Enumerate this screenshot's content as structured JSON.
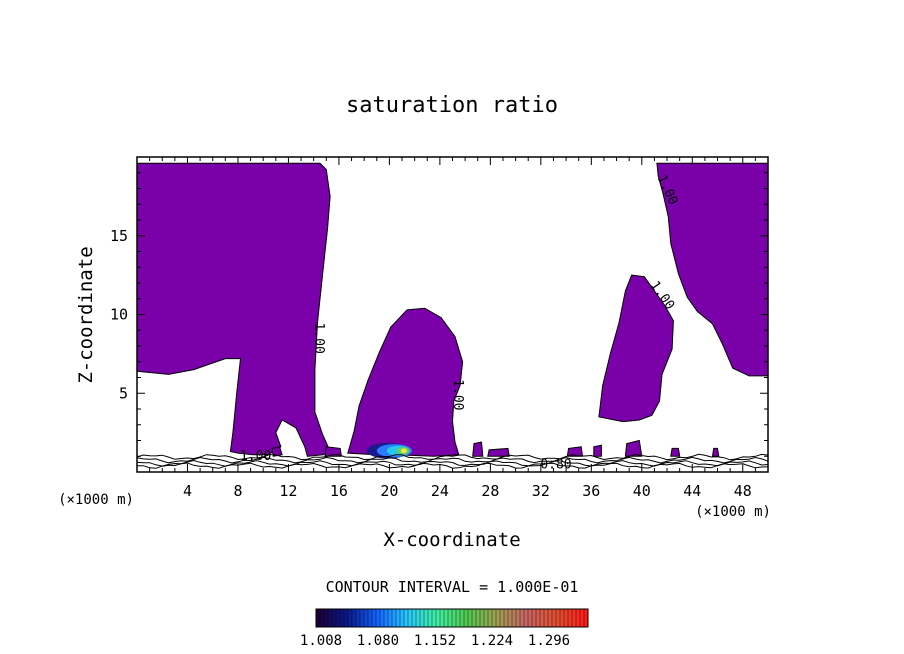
{
  "chart_data": {
    "type": "contour",
    "title": "saturation ratio",
    "xlabel": "X-coordinate",
    "ylabel": "Z-coordinate",
    "x_unit_label": "(×1000 m)",
    "z_unit_label": "(×1000 m)",
    "xlim": [
      0,
      50
    ],
    "ylim": [
      0,
      20
    ],
    "x_ticks": [
      4,
      8,
      12,
      16,
      20,
      24,
      28,
      32,
      36,
      40,
      44,
      48
    ],
    "y_ticks": [
      5,
      10,
      15
    ],
    "fill_color": "#7a00aa",
    "contour_labels": [
      {
        "text": "1.00",
        "x": 14.4,
        "z": 8.5,
        "rotate": 90
      },
      {
        "text": "1.00",
        "x": 25.4,
        "z": 4.9,
        "rotate": 90
      },
      {
        "text": "1.00",
        "x": 41.6,
        "z": 11.2,
        "rotate": 55
      },
      {
        "text": "1.00",
        "x": 42.0,
        "z": 17.9,
        "rotate": 65
      },
      {
        "text": "1.00",
        "x": 9.4,
        "z": 1.0,
        "rotate": 0
      },
      {
        "text": "0.80",
        "x": 33.2,
        "z": 0.45,
        "rotate": 0
      }
    ],
    "contour_interval_text": "CONTOUR INTERVAL = 1.000E-01",
    "colorbar": {
      "ticks": [
        "1.008",
        "1.080",
        "1.152",
        "1.224",
        "1.296"
      ],
      "colors": [
        "#1c0038",
        "#0a1a8c",
        "#1464ff",
        "#28c8ff",
        "#40f0a0",
        "#50c850",
        "#a0a050",
        "#c86464",
        "#e05030",
        "#ff1a1a"
      ]
    }
  }
}
